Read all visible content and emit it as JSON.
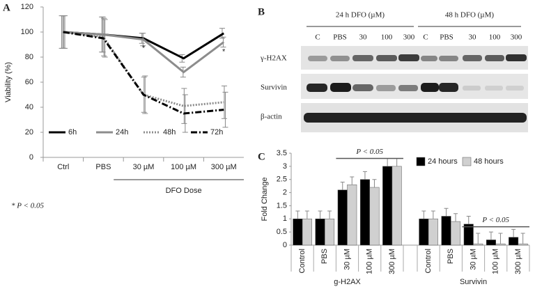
{
  "chart_data": [
    {
      "type": "line",
      "panel": "A",
      "y_label": "Viability (%)",
      "categories": [
        "Ctrl",
        "PBS",
        "30 µM",
        "100 µM",
        "300 µM"
      ],
      "ylim": [
        0,
        120
      ],
      "yticks": [
        0,
        20,
        40,
        60,
        80,
        100,
        120
      ],
      "series": [
        {
          "name": "6h",
          "color": "#000000",
          "style": "solid",
          "values": [
            100,
            98,
            95,
            79,
            99
          ],
          "errors": [
            13,
            14,
            4,
            3,
            4
          ]
        },
        {
          "name": "24h",
          "color": "#8c8c8c",
          "style": "solid",
          "values": [
            100,
            98,
            94,
            68,
            92
          ],
          "errors": [
            13,
            14,
            5,
            4,
            4
          ]
        },
        {
          "name": "48h",
          "color": "#8c8c8c",
          "style": "dotted",
          "values": [
            100,
            96,
            50,
            41,
            44
          ],
          "errors": [
            13,
            15,
            14,
            14,
            13
          ]
        },
        {
          "name": "72h",
          "color": "#000000",
          "style": "dashdot",
          "values": [
            100,
            95,
            50,
            35,
            38
          ],
          "errors": [
            13,
            15,
            15,
            15,
            14
          ]
        }
      ],
      "annotations": [
        {
          "text": "*",
          "category": "30 µM",
          "y": 87
        },
        {
          "text": "*",
          "category": "300 µM",
          "y": 84
        }
      ],
      "x_group": {
        "label": "DFO Dose",
        "from": "30 µM",
        "to": "300 µM"
      },
      "footnote": "* P < 0.05"
    },
    {
      "type": "grouped-bar",
      "panel": "C",
      "y_label": "Fold Change",
      "groups": [
        {
          "name": "g-H2AX",
          "categories": [
            "Control",
            "PBS",
            "30 µM",
            "100 µM",
            "300 µM"
          ]
        },
        {
          "name": "Survivin",
          "categories": [
            "Control",
            "PBS",
            "30 µM",
            "100 µM",
            "300 µM"
          ]
        }
      ],
      "ylim": [
        0,
        3.5
      ],
      "yticks": [
        0,
        0.5,
        1,
        1.5,
        2,
        2.5,
        3,
        3.5
      ],
      "legend": "top-right",
      "series": [
        {
          "name": "24 hours",
          "color": "#000000",
          "values": [
            1,
            1,
            2.1,
            2.5,
            3,
            1,
            1.1,
            0.8,
            0.2,
            0.3
          ],
          "errors": [
            0.3,
            0.3,
            0.3,
            0.3,
            0.3,
            0.3,
            0.3,
            0.3,
            0.3,
            0.3
          ]
        },
        {
          "name": "48 hours",
          "color": "#d0d0d0",
          "values": [
            1,
            1,
            2.3,
            2.2,
            3,
            1,
            0.9,
            0.05,
            0.05,
            0.05
          ],
          "errors": [
            0.3,
            0.3,
            0.3,
            0.3,
            0.3,
            0.3,
            0.3,
            0.4,
            0.4,
            0.4
          ]
        }
      ],
      "annotations": [
        {
          "text": "P < 0.05",
          "group": "g-H2AX",
          "from": "30 µM",
          "to": "300 µM",
          "y": 3.3
        },
        {
          "text": "P < 0.05",
          "group": "Survivin",
          "from": "30 µM",
          "to": "300 µM",
          "y": 0.7
        }
      ]
    }
  ],
  "blot": {
    "panel": "B",
    "conditions": [
      "24 h DFO (µM)",
      "48 h DFO (µM)"
    ],
    "lanes": [
      "C",
      "PBS",
      "30",
      "100",
      "300",
      "C",
      "PBS",
      "30",
      "100",
      "300"
    ],
    "rows": [
      "γ-H2AX",
      "Survivin",
      "β-actin"
    ]
  }
}
